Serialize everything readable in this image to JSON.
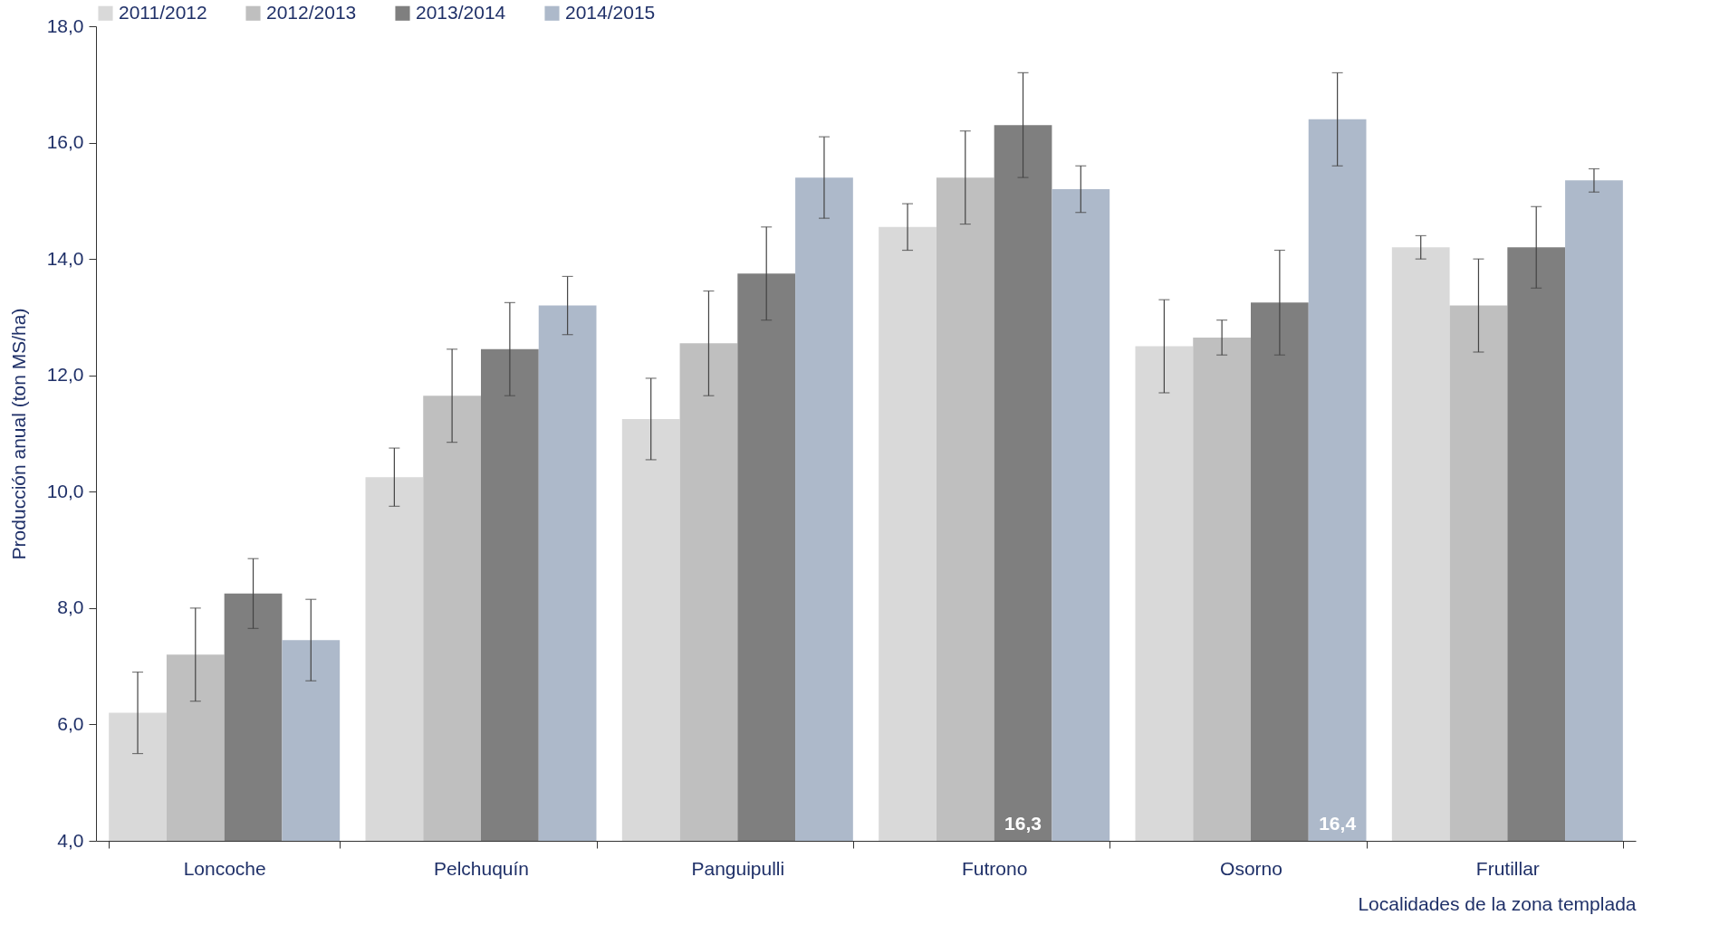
{
  "chart_data": {
    "type": "bar",
    "xlabel": "Localidades de la zona templada",
    "ylabel": "Producción anual (ton MS/ha)",
    "categories": [
      "Loncoche",
      "Pelchuquín",
      "Panguipulli",
      "Futrono",
      "Osorno",
      "Frutillar"
    ],
    "series": [
      {
        "name": "2011/2012",
        "color": "#d9d9d9",
        "values": [
          6.2,
          10.25,
          11.25,
          14.55,
          12.5,
          14.2
        ],
        "errors": [
          0.7,
          0.5,
          0.7,
          0.4,
          0.8,
          0.2
        ]
      },
      {
        "name": "2012/2013",
        "color": "#bfbfbf",
        "values": [
          7.2,
          11.65,
          12.55,
          15.4,
          12.65,
          13.2
        ],
        "errors": [
          0.8,
          0.8,
          0.9,
          0.8,
          0.3,
          0.8
        ]
      },
      {
        "name": "2013/2014",
        "color": "#7f7f7f",
        "values": [
          8.25,
          12.45,
          13.75,
          16.3,
          13.25,
          14.2
        ],
        "errors": [
          0.6,
          0.8,
          0.8,
          0.9,
          0.9,
          0.7
        ],
        "value_labels": [
          null,
          null,
          null,
          "16,3",
          null,
          null
        ]
      },
      {
        "name": "2014/2015",
        "color": "#adb9ca",
        "values": [
          7.45,
          13.2,
          15.4,
          15.2,
          16.4,
          15.35
        ],
        "errors": [
          0.7,
          0.5,
          0.7,
          0.4,
          0.8,
          0.2
        ],
        "value_labels": [
          null,
          null,
          null,
          null,
          "16,4",
          null
        ]
      }
    ],
    "ylim": [
      4,
      18
    ],
    "yticks": [
      {
        "value": 4,
        "label": "4,0"
      },
      {
        "value": 6,
        "label": "6,0"
      },
      {
        "value": 8,
        "label": "8,0"
      },
      {
        "value": 10,
        "label": "10,0"
      },
      {
        "value": 12,
        "label": "12,0"
      },
      {
        "value": 14,
        "label": "14,0"
      },
      {
        "value": 16,
        "label": "16,0"
      },
      {
        "value": 18,
        "label": "18,0"
      }
    ],
    "grid": false,
    "legend": "top"
  }
}
